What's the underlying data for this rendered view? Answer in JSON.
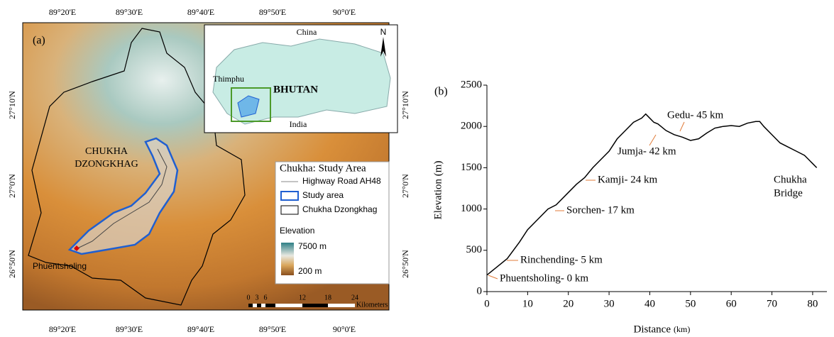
{
  "map": {
    "panel": "(a)",
    "lon_labels": [
      "89°20'E",
      "89°30'E",
      "89°40'E",
      "89°50'E",
      "90°0'E"
    ],
    "lat_labels": [
      "27°10'N",
      "27°0'N",
      "26°50'N"
    ],
    "district": [
      "CHUKHA",
      "DZONGKHAG"
    ],
    "town": "Phuentsholing",
    "inset": {
      "china": "China",
      "india": "India",
      "thimphu": "Thimphu",
      "country": "BHUTAN",
      "north": "N"
    },
    "legend": {
      "title": "Chukha: Study Area",
      "items": [
        "Highway Road AH48",
        "Study area",
        "Chukha Dzongkhag"
      ],
      "elevation_title": "Elevation",
      "high": "7500 m",
      "low": "200 m"
    },
    "scale": {
      "ticks": [
        "0",
        "3",
        "6",
        "12",
        "18",
        "24"
      ],
      "unit": "Kilometers"
    }
  },
  "chart_data": {
    "type": "line",
    "panel": "(b)",
    "x_label": "Distance",
    "x_unit": "(km)",
    "y_label": "Elevation (m)",
    "x": [
      0,
      2,
      5,
      8,
      10,
      13,
      15,
      17,
      20,
      22,
      24,
      26,
      28,
      30,
      32,
      34,
      36,
      38,
      39,
      40,
      41,
      42,
      44,
      46,
      48,
      50,
      52,
      54,
      56,
      58,
      60,
      62,
      64,
      66,
      67,
      68,
      70,
      72,
      74,
      76,
      78,
      79,
      80,
      81
    ],
    "series": [
      {
        "name": "Elevation",
        "color": "#000000",
        "values": [
          200,
          280,
          400,
          600,
          750,
          900,
          1000,
          1050,
          1200,
          1300,
          1380,
          1500,
          1600,
          1700,
          1850,
          1950,
          2050,
          2100,
          2150,
          2100,
          2050,
          2030,
          1950,
          1900,
          1870,
          1830,
          1850,
          1920,
          1980,
          2000,
          2010,
          2000,
          2040,
          2060,
          2060,
          2000,
          1900,
          1800,
          1750,
          1700,
          1650,
          1600,
          1550,
          1500
        ]
      }
    ],
    "xlim": [
      0,
      83.5
    ],
    "ylim": [
      0,
      2500
    ],
    "xticks": [
      0,
      10,
      20,
      30,
      40,
      50,
      60,
      70,
      80
    ],
    "yticks": [
      0,
      500,
      1000,
      1500,
      2000,
      2500
    ],
    "annotations": [
      "Phuentsholing- 0 km",
      "Rinchending- 5 km",
      "Sorchen- 17 km",
      "Kamji- 24 km",
      "Jumja- 42 km",
      "Gedu- 45 km",
      "Chukha",
      "Bridge"
    ],
    "annotation_color": "#e07b39"
  }
}
